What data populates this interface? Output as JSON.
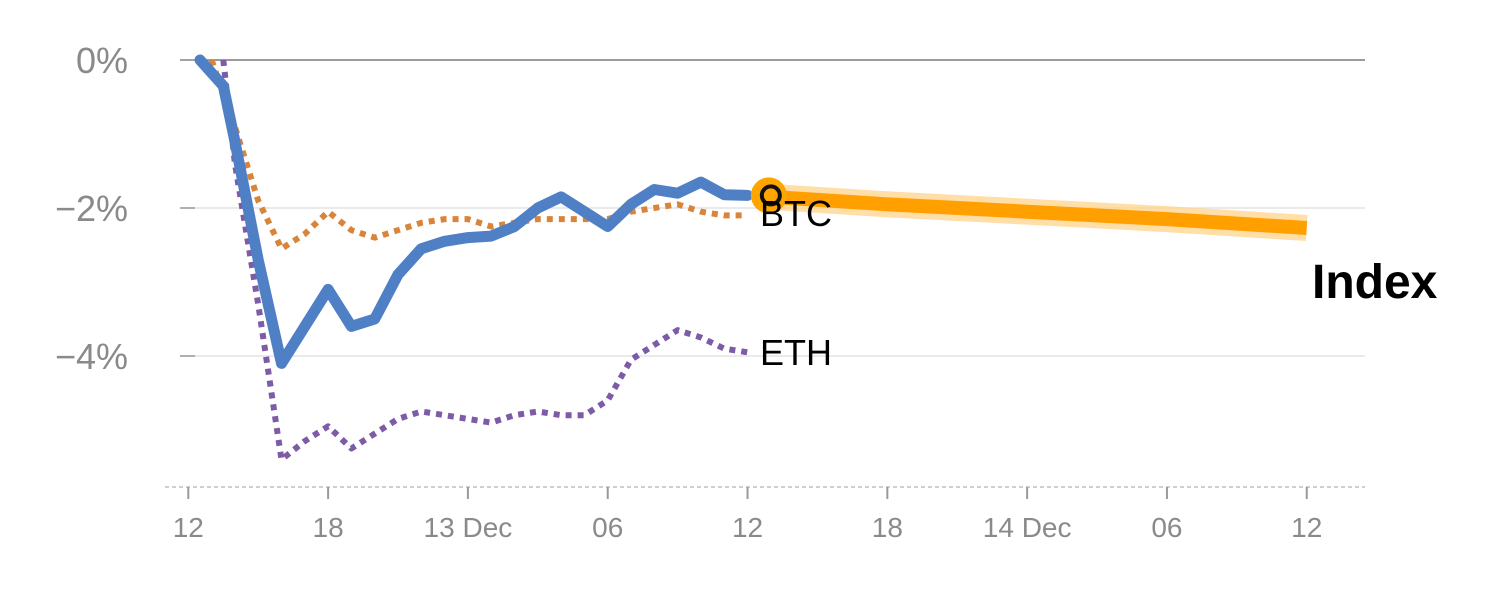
{
  "chart_data": {
    "type": "line",
    "title": "",
    "xlabel": "",
    "ylabel": "",
    "ylim": [
      -5.7,
      0.05
    ],
    "y_ticks": [
      {
        "value": 0,
        "label": "0%"
      },
      {
        "value": -2,
        "label": "−2%"
      },
      {
        "value": -4,
        "label": "−4%"
      }
    ],
    "x_range": [
      -1,
      50.5
    ],
    "x_ticks": [
      {
        "x": 0,
        "label": "12"
      },
      {
        "x": 6,
        "label": "18"
      },
      {
        "x": 12,
        "label": "13 Dec"
      },
      {
        "x": 18,
        "label": "06"
      },
      {
        "x": 24,
        "label": "12"
      },
      {
        "x": 30,
        "label": "18"
      },
      {
        "x": 36,
        "label": "14 Dec"
      },
      {
        "x": 42,
        "label": "06"
      },
      {
        "x": 48,
        "label": "12"
      }
    ],
    "series": [
      {
        "name": "BTC",
        "color": "#d9843b",
        "style": "dotted",
        "x": [
          1,
          2,
          3,
          4,
          5,
          6,
          7,
          8,
          9,
          10,
          11,
          12,
          13,
          14,
          15,
          16,
          17,
          18,
          19,
          20,
          21,
          22,
          23,
          24
        ],
        "values": [
          0.0,
          -0.9,
          -1.9,
          -2.55,
          -2.35,
          -2.05,
          -2.3,
          -2.4,
          -2.3,
          -2.2,
          -2.15,
          -2.15,
          -2.25,
          -2.2,
          -2.15,
          -2.15,
          -2.15,
          -2.15,
          -2.05,
          -2.0,
          -1.95,
          -2.05,
          -2.1,
          -2.1
        ]
      },
      {
        "name": "ETH",
        "color": "#7d5ba6",
        "style": "dotted",
        "x": [
          1.5,
          2,
          3,
          4,
          5,
          6,
          7,
          8,
          9,
          10,
          11,
          12,
          13,
          14,
          15,
          16,
          17,
          18,
          19,
          20,
          21,
          22,
          23,
          24
        ],
        "values": [
          0.0,
          -1.4,
          -3.3,
          -5.4,
          -5.15,
          -4.95,
          -5.25,
          -5.05,
          -4.85,
          -4.75,
          -4.8,
          -4.85,
          -4.9,
          -4.8,
          -4.75,
          -4.8,
          -4.8,
          -4.6,
          -4.05,
          -3.85,
          -3.65,
          -3.75,
          -3.9,
          -3.95
        ]
      },
      {
        "name": "Index",
        "color": "#4f7fc4",
        "style": "solid",
        "x": [
          0.5,
          1.5,
          2,
          3,
          4,
          5,
          6,
          7,
          8,
          9,
          10,
          11,
          12,
          13,
          14,
          15,
          16,
          17,
          18,
          19,
          20,
          21,
          22,
          23,
          24
        ],
        "values": [
          0.0,
          -0.35,
          -1.1,
          -2.7,
          -4.1,
          -3.6,
          -3.1,
          -3.6,
          -3.5,
          -2.9,
          -2.55,
          -2.45,
          -2.4,
          -2.38,
          -2.25,
          -2.0,
          -1.85,
          -2.05,
          -2.25,
          -1.95,
          -1.75,
          -1.8,
          -1.65,
          -1.82,
          -1.83
        ]
      }
    ],
    "forecast": {
      "name": "Index forecast",
      "color": "#ff9f00",
      "x": [
        25,
        30,
        36,
        42,
        48
      ],
      "values": [
        -1.85,
        -1.95,
        -2.05,
        -2.15,
        -2.27
      ]
    },
    "marker": {
      "x": 25,
      "value": -1.83,
      "fill": "#ffa500",
      "ring": "#111111"
    },
    "labels": [
      {
        "text": "BTC",
        "color": "#d9843b"
      },
      {
        "text": "ETH",
        "color": "#7d5ba6"
      },
      {
        "text": "Index",
        "color": "#4f7fc4"
      }
    ]
  }
}
